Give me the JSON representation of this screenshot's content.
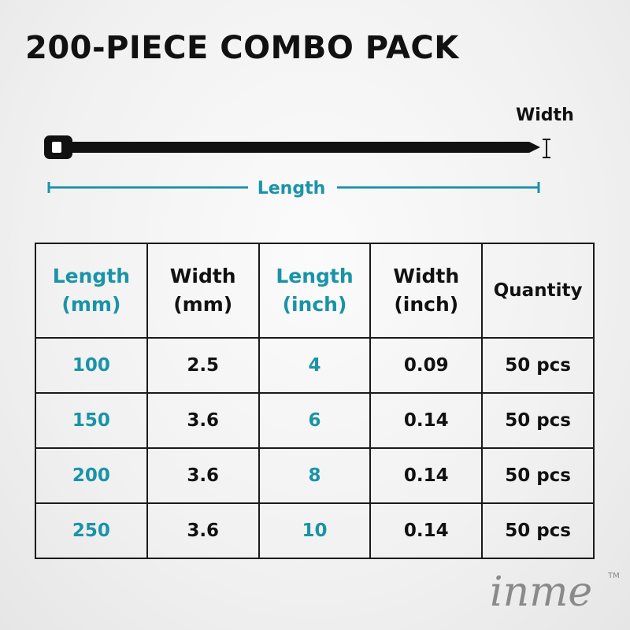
{
  "header": {
    "title": "200-PIECE COMBO PACK"
  },
  "diagram": {
    "width_label": "Width",
    "length_label": "Length"
  },
  "table": {
    "columns": [
      [
        "Length",
        "(mm)"
      ],
      [
        "Width",
        "(mm)"
      ],
      [
        "Length",
        "(inch)"
      ],
      [
        "Width",
        "(inch)"
      ],
      [
        "Quantity"
      ]
    ],
    "rows": [
      [
        "100",
        "2.5",
        "4",
        "0.09",
        "50 pcs"
      ],
      [
        "150",
        "3.6",
        "6",
        "0.14",
        "50 pcs"
      ],
      [
        "200",
        "3.6",
        "8",
        "0.14",
        "50 pcs"
      ],
      [
        "250",
        "3.6",
        "10",
        "0.14",
        "50 pcs"
      ]
    ]
  },
  "brand": {
    "name": "inme",
    "mark": "TM"
  }
}
